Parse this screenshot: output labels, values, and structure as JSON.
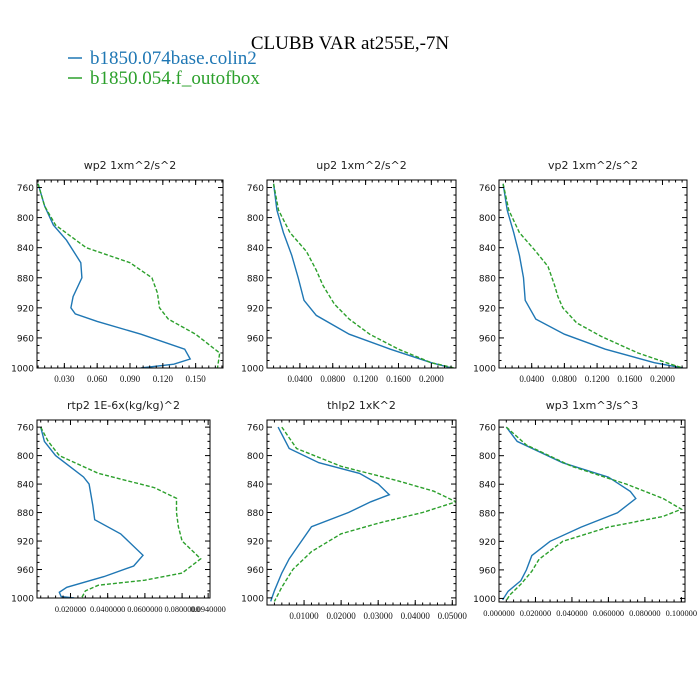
{
  "title": "CLUBB VAR at255E,-7N",
  "legend": [
    {
      "name": "b1850.074base.colin2",
      "color": "#1f77b4",
      "dash": "solid"
    },
    {
      "name": "b1850.054.f_outofbox",
      "color": "#2ca02c",
      "dash": "dashed"
    }
  ],
  "chart_data": [
    {
      "type": "line",
      "title": "wp2  1xm^2/s^2",
      "ylim": [
        1000,
        750
      ],
      "yticks": [
        760,
        800,
        840,
        880,
        920,
        960,
        1000
      ],
      "xlim": [
        0.005,
        0.175
      ],
      "xticks": [
        0.03,
        0.06,
        0.09,
        0.12,
        0.15
      ],
      "xticklabels": [
        "0.030",
        "0.060",
        "0.090",
        "0.120",
        "0.150"
      ],
      "series": [
        {
          "name": "b1850.074base.colin2",
          "points": [
            [
              0.006,
              755
            ],
            [
              0.012,
              785
            ],
            [
              0.02,
              810
            ],
            [
              0.032,
              830
            ],
            [
              0.045,
              860
            ],
            [
              0.046,
              880
            ],
            [
              0.038,
              905
            ],
            [
              0.036,
              920
            ],
            [
              0.04,
              928
            ],
            [
              0.06,
              938
            ],
            [
              0.1,
              955
            ],
            [
              0.14,
              975
            ],
            [
              0.145,
              988
            ],
            [
              0.13,
              995
            ],
            [
              0.1,
              1000
            ]
          ]
        },
        {
          "name": "b1850.054.f_outofbox",
          "points": [
            [
              0.006,
              755
            ],
            [
              0.012,
              785
            ],
            [
              0.022,
              810
            ],
            [
              0.05,
              840
            ],
            [
              0.09,
              860
            ],
            [
              0.11,
              880
            ],
            [
              0.115,
              900
            ],
            [
              0.117,
              920
            ],
            [
              0.125,
              935
            ],
            [
              0.15,
              955
            ],
            [
              0.172,
              980
            ],
            [
              0.17,
              1000
            ]
          ]
        }
      ]
    },
    {
      "type": "line",
      "title": "up2  1xm^2/s^2",
      "ylim": [
        1000,
        750
      ],
      "yticks": [
        760,
        800,
        840,
        880,
        920,
        960,
        1000
      ],
      "xlim": [
        0.0,
        0.23
      ],
      "xticks": [
        0.04,
        0.08,
        0.12,
        0.16,
        0.2
      ],
      "xticklabels": [
        "0.0400",
        "0.0800",
        "0.1200",
        "0.1600",
        "0.2000"
      ],
      "series": [
        {
          "name": "b1850.074base.colin2",
          "points": [
            [
              0.008,
              755
            ],
            [
              0.012,
              790
            ],
            [
              0.02,
              820
            ],
            [
              0.03,
              850
            ],
            [
              0.038,
              880
            ],
            [
              0.045,
              910
            ],
            [
              0.06,
              930
            ],
            [
              0.1,
              955
            ],
            [
              0.15,
              975
            ],
            [
              0.2,
              993
            ],
            [
              0.225,
              1000
            ]
          ]
        },
        {
          "name": "b1850.054.f_outofbox",
          "points": [
            [
              0.008,
              755
            ],
            [
              0.014,
              790
            ],
            [
              0.028,
              820
            ],
            [
              0.048,
              845
            ],
            [
              0.06,
              870
            ],
            [
              0.068,
              890
            ],
            [
              0.082,
              915
            ],
            [
              0.1,
              935
            ],
            [
              0.125,
              955
            ],
            [
              0.16,
              975
            ],
            [
              0.2,
              993
            ],
            [
              0.228,
              1000
            ]
          ]
        }
      ]
    },
    {
      "type": "line",
      "title": "vp2  1xm^2/s^2",
      "ylim": [
        1000,
        750
      ],
      "yticks": [
        760,
        800,
        840,
        880,
        920,
        960,
        1000
      ],
      "xlim": [
        0.0,
        0.23
      ],
      "xticks": [
        0.04,
        0.08,
        0.12,
        0.16,
        0.2
      ],
      "xticklabels": [
        "0.0400",
        "0.0800",
        "0.1200",
        "0.1600",
        "0.2000"
      ],
      "series": [
        {
          "name": "b1850.074base.colin2",
          "points": [
            [
              0.005,
              755
            ],
            [
              0.01,
              790
            ],
            [
              0.018,
              820
            ],
            [
              0.025,
              850
            ],
            [
              0.03,
              880
            ],
            [
              0.032,
              910
            ],
            [
              0.045,
              935
            ],
            [
              0.08,
              955
            ],
            [
              0.13,
              975
            ],
            [
              0.19,
              993
            ],
            [
              0.225,
              1000
            ]
          ]
        },
        {
          "name": "b1850.054.f_outofbox",
          "points": [
            [
              0.005,
              755
            ],
            [
              0.012,
              790
            ],
            [
              0.025,
              820
            ],
            [
              0.045,
              845
            ],
            [
              0.06,
              865
            ],
            [
              0.068,
              890
            ],
            [
              0.072,
              905
            ],
            [
              0.078,
              920
            ],
            [
              0.095,
              940
            ],
            [
              0.125,
              958
            ],
            [
              0.17,
              980
            ],
            [
              0.21,
              995
            ],
            [
              0.225,
              1000
            ]
          ]
        }
      ]
    },
    {
      "type": "line",
      "title": "rtp2  1E-6x(kg/kg)^2",
      "ylim": [
        1000,
        750
      ],
      "yticks": [
        760,
        800,
        840,
        880,
        920,
        960,
        1000
      ],
      "xlim": [
        0.002,
        0.095
      ],
      "xticks": [
        0.02,
        0.04,
        0.06,
        0.08,
        0.094
      ],
      "xticklabels": [
        "0.020000",
        "0.0400000",
        "0.0600000",
        "0.0800000",
        "0.0940000"
      ],
      "series": [
        {
          "name": "b1850.074base.colin2",
          "points": [
            [
              0.004,
              760
            ],
            [
              0.006,
              780
            ],
            [
              0.012,
              800
            ],
            [
              0.027,
              830
            ],
            [
              0.03,
              840
            ],
            [
              0.032,
              870
            ],
            [
              0.033,
              890
            ],
            [
              0.047,
              910
            ],
            [
              0.059,
              940
            ],
            [
              0.054,
              955
            ],
            [
              0.038,
              970
            ],
            [
              0.018,
              985
            ],
            [
              0.014,
              992
            ],
            [
              0.015,
              998
            ],
            [
              0.022,
              1000
            ]
          ]
        },
        {
          "name": "b1850.054.f_outofbox",
          "points": [
            [
              0.004,
              760
            ],
            [
              0.008,
              780
            ],
            [
              0.014,
              800
            ],
            [
              0.035,
              825
            ],
            [
              0.065,
              845
            ],
            [
              0.077,
              860
            ],
            [
              0.077,
              880
            ],
            [
              0.078,
              900
            ],
            [
              0.08,
              920
            ],
            [
              0.09,
              945
            ],
            [
              0.08,
              965
            ],
            [
              0.06,
              975
            ],
            [
              0.035,
              982
            ],
            [
              0.028,
              990
            ],
            [
              0.026,
              1000
            ]
          ]
        }
      ]
    },
    {
      "type": "line",
      "title": "thlp2  1xK^2",
      "ylim": [
        1010,
        750
      ],
      "yticks": [
        760,
        800,
        840,
        880,
        920,
        960,
        1000
      ],
      "xlim": [
        0.0,
        0.051
      ],
      "xticks": [
        0.01,
        0.02,
        0.03,
        0.04,
        0.05
      ],
      "xticklabels": [
        "0.01000",
        "0.02000",
        "0.03000",
        "0.04000",
        "0.05000"
      ],
      "series": [
        {
          "name": "b1850.074base.colin2",
          "points": [
            [
              0.003,
              760
            ],
            [
              0.006,
              790
            ],
            [
              0.014,
              810
            ],
            [
              0.025,
              825
            ],
            [
              0.03,
              840
            ],
            [
              0.033,
              855
            ],
            [
              0.028,
              865
            ],
            [
              0.022,
              880
            ],
            [
              0.012,
              900
            ],
            [
              0.008,
              930
            ],
            [
              0.006,
              945
            ],
            [
              0.004,
              965
            ],
            [
              0.002,
              990
            ],
            [
              0.001,
              1005
            ]
          ]
        },
        {
          "name": "b1850.054.f_outofbox",
          "points": [
            [
              0.004,
              760
            ],
            [
              0.008,
              790
            ],
            [
              0.02,
              815
            ],
            [
              0.035,
              835
            ],
            [
              0.045,
              850
            ],
            [
              0.051,
              865
            ],
            [
              0.042,
              880
            ],
            [
              0.03,
              895
            ],
            [
              0.02,
              910
            ],
            [
              0.012,
              935
            ],
            [
              0.007,
              960
            ],
            [
              0.004,
              985
            ],
            [
              0.002,
              1005
            ]
          ]
        }
      ]
    },
    {
      "type": "line",
      "title": "wp3  1xm^3/s^3",
      "ylim": [
        1005,
        750
      ],
      "yticks": [
        760,
        800,
        840,
        880,
        920,
        960,
        1000
      ],
      "xlim": [
        0.0,
        0.102
      ],
      "xticks": [
        0.0,
        0.02,
        0.04,
        0.06,
        0.08,
        0.1
      ],
      "xticklabels": [
        "0.000000",
        "0.020000",
        "0.040000",
        "0.060000",
        "0.080000",
        "0.100000"
      ],
      "series": [
        {
          "name": "b1850.074base.colin2",
          "points": [
            [
              0.004,
              760
            ],
            [
              0.01,
              780
            ],
            [
              0.035,
              810
            ],
            [
              0.06,
              830
            ],
            [
              0.072,
              850
            ],
            [
              0.075,
              860
            ],
            [
              0.065,
              880
            ],
            [
              0.045,
              900
            ],
            [
              0.028,
              920
            ],
            [
              0.018,
              940
            ],
            [
              0.015,
              960
            ],
            [
              0.012,
              975
            ],
            [
              0.005,
              990
            ],
            [
              0.002,
              1002
            ]
          ]
        },
        {
          "name": "b1850.054.f_outofbox",
          "points": [
            [
              0.004,
              760
            ],
            [
              0.015,
              785
            ],
            [
              0.04,
              815
            ],
            [
              0.07,
              840
            ],
            [
              0.09,
              860
            ],
            [
              0.1,
              875
            ],
            [
              0.09,
              885
            ],
            [
              0.06,
              900
            ],
            [
              0.035,
              920
            ],
            [
              0.022,
              945
            ],
            [
              0.018,
              962
            ],
            [
              0.012,
              980
            ],
            [
              0.006,
              995
            ],
            [
              0.004,
              1003
            ]
          ]
        }
      ]
    }
  ]
}
